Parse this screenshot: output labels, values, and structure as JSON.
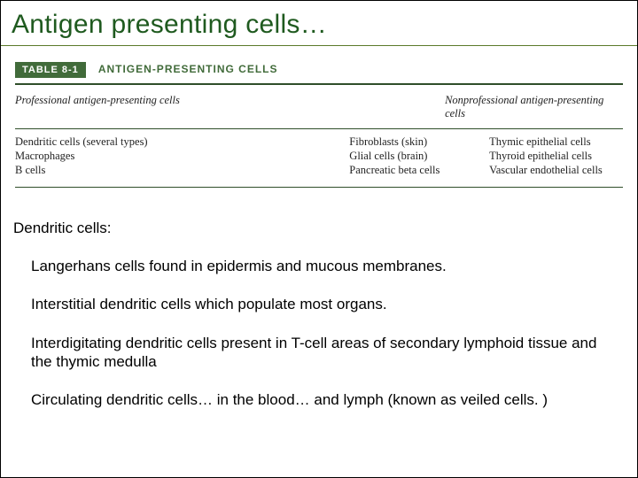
{
  "title": {
    "text": "Antigen presenting cells…",
    "color": "#1f5a1f"
  },
  "table": {
    "tag": "TABLE 8-1",
    "title": "ANTIGEN-PRESENTING CELLS",
    "header_left": "Professional antigen-presenting cells",
    "header_right": "Nonprofessional antigen-presenting cells",
    "left_rows": [
      "Dendritic cells (several types)",
      "Macrophages",
      "B cells"
    ],
    "mid_rows": [
      "Fibroblasts (skin)",
      "Glial cells (brain)",
      "Pancreatic beta cells"
    ],
    "right_rows": [
      "Thymic epithelial cells",
      "Thyroid epithelial cells",
      "Vascular endothelial cells"
    ],
    "accent_color": "#416b3a",
    "rule_color": "#2f4e2a"
  },
  "body": {
    "heading": "Dendritic cells:",
    "paragraphs": [
      "Langerhans cells found in epidermis and mucous membranes.",
      "Interstitial dendritic cells which populate most organs.",
      "Interdigitating dendritic cells present in T-cell areas of secondary lymphoid tissue and the thymic medulla",
      "Circulating dendritic cells… in the blood… and lymph (known as veiled cells. )"
    ]
  }
}
